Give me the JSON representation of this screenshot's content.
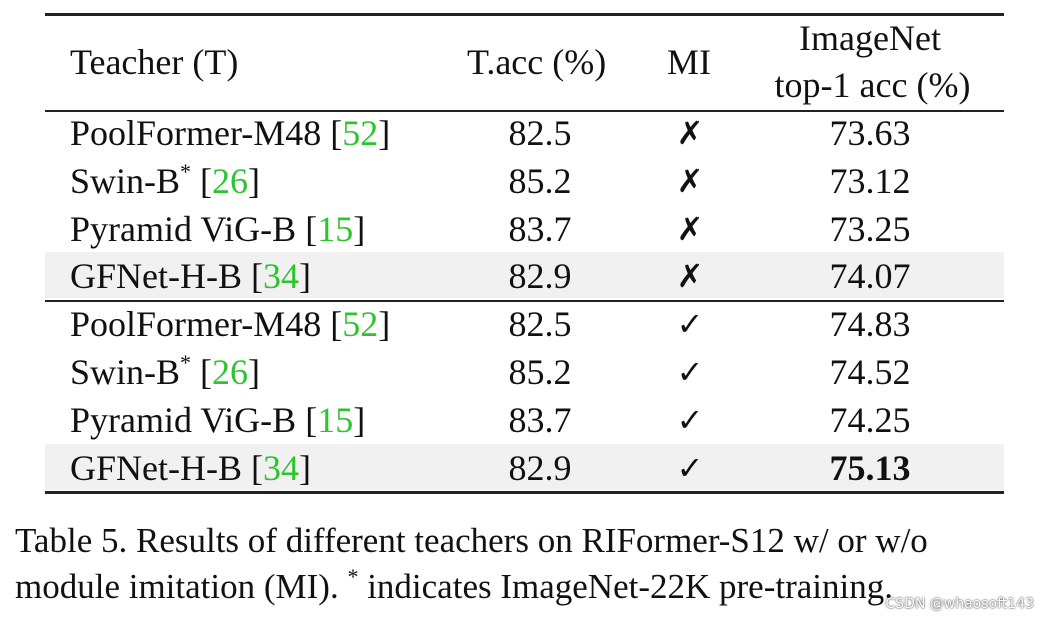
{
  "table": {
    "headers": {
      "teacher": "Teacher (T)",
      "tacc": "T.acc (%)",
      "mi": "MI",
      "imagenet_line1": "ImageNet",
      "imagenet_line2": "top-1 acc (%)"
    },
    "rows": [
      {
        "name": "PoolFormer-M48",
        "sup": "",
        "ref": "52",
        "tacc": "82.5",
        "mi": "✗",
        "acc": "73.63"
      },
      {
        "name": "Swin-B",
        "sup": "*",
        "ref": "26",
        "tacc": "85.2",
        "mi": "✗",
        "acc": "73.12"
      },
      {
        "name": "Pyramid ViG-B",
        "sup": "",
        "ref": "15",
        "tacc": "83.7",
        "mi": "✗",
        "acc": "73.25"
      },
      {
        "name": "GFNet-H-B",
        "sup": "",
        "ref": "34",
        "tacc": "82.9",
        "mi": "✗",
        "acc": "74.07"
      },
      {
        "name": "PoolFormer-M48",
        "sup": "",
        "ref": "52",
        "tacc": "82.5",
        "mi": "✓",
        "acc": "74.83"
      },
      {
        "name": "Swin-B",
        "sup": "*",
        "ref": "26",
        "tacc": "85.2",
        "mi": "✓",
        "acc": "74.52"
      },
      {
        "name": "Pyramid ViG-B",
        "sup": "",
        "ref": "15",
        "tacc": "83.7",
        "mi": "✓",
        "acc": "74.25"
      },
      {
        "name": "GFNet-H-B",
        "sup": "",
        "ref": "34",
        "tacc": "82.9",
        "mi": "✓",
        "acc": "75.13"
      }
    ]
  },
  "caption": {
    "line1": "Table 5. Results of different teachers on RIFormer-S12 w/ or w/o",
    "line2_a": "module imitation (MI).",
    "line2_sup": "*",
    "line2_b": "indicates ImageNet-22K pre-training."
  },
  "watermark": "CSDN @whaosoft143"
}
